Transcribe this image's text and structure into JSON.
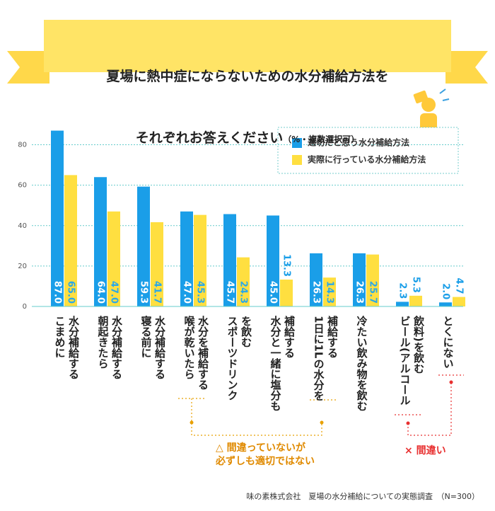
{
  "chart_data": {
    "type": "bar",
    "title_lines": [
      "夏場に熱中症にならないための水分補給方法を",
      "それぞれお答えください"
    ],
    "subtitle": "（%・複数選択可）",
    "categories": [
      "こまめに\n水分補給する",
      "朝起きたら\n水分補給する",
      "寝る前に\n水分補給する",
      "喉が乾いたら\n水分を補給する",
      "スポーツドリンク\nを飲む",
      "水分と一緒に塩分も\n補給する",
      "1日に1Lの水分を\n補給する",
      "冷たい飲み物を飲む",
      "ビール(アルコール\n飲料)を飲む",
      "とくにない"
    ],
    "series": [
      {
        "name": "適切だと思う水分補給方法",
        "color": "#1a9ee8",
        "values": [
          87.0,
          64.0,
          59.3,
          47.0,
          45.7,
          45.0,
          26.3,
          26.3,
          2.3,
          2.0
        ],
        "value_labels": [
          "87.0",
          "64.0",
          "59.3",
          "47.0",
          "45.7",
          "45.0",
          "26.3",
          "26.3",
          "2.3",
          "2.0"
        ]
      },
      {
        "name": "実際に行っている水分補給方法",
        "color": "#ffdf40",
        "values": [
          65.0,
          47.0,
          41.7,
          45.3,
          24.3,
          13.3,
          14.3,
          25.7,
          5.3,
          4.7
        ],
        "value_labels": [
          "65.0",
          "47.0",
          "41.7",
          "45.3",
          "24.3",
          "13.3",
          "14.3",
          "25.7",
          "5.3",
          "4.7"
        ]
      }
    ],
    "ylim": [
      0,
      90
    ],
    "yticks": [
      0,
      20,
      40,
      60,
      80
    ],
    "grid": true,
    "annotations": [
      "△ 間違っていないが\n必ずしも適切ではない",
      "× 間違い"
    ],
    "source": "味の素株式会社　夏場の水分補給についての実態調査　（N=300）"
  }
}
